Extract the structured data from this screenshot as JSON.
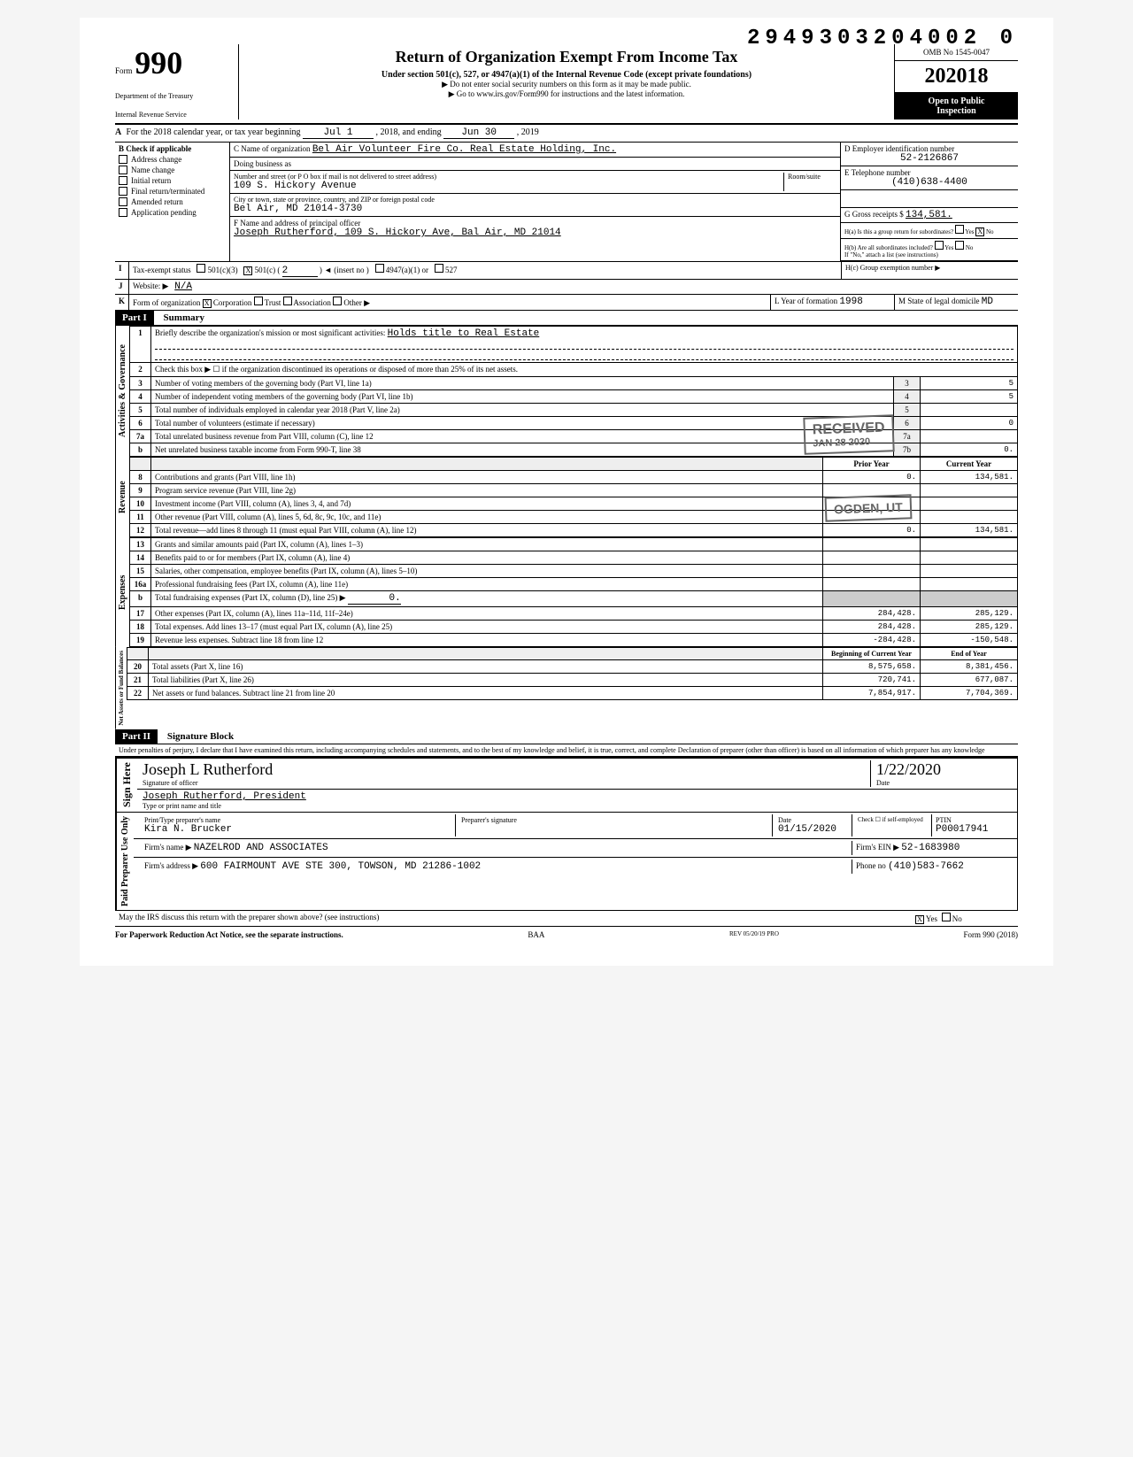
{
  "document_id": "2949303204002 0",
  "form": {
    "label": "Form",
    "number": "990",
    "title": "Return of Organization Exempt From Income Tax",
    "subtitle": "Under section 501(c), 527, or 4947(a)(1) of the Internal Revenue Code (except private foundations)",
    "instruction1": "▶ Do not enter social security numbers on this form as it may be made public.",
    "instruction2": "▶ Go to www.irs.gov/Form990 for instructions and the latest information.",
    "dept1": "Department of the Treasury",
    "dept2": "Internal Revenue Service",
    "omb": "OMB No 1545-0047",
    "year": "2018",
    "open_public1": "Open to Public",
    "open_public2": "Inspection"
  },
  "line_a": {
    "prefix": "For the 2018 calendar year, or tax year beginning",
    "begin": "Jul 1",
    "mid": ", 2018, and ending",
    "end": "Jun 30",
    "suffix": ", 2019"
  },
  "section_b": {
    "header": "Check if applicable",
    "items": [
      "Address change",
      "Name change",
      "Initial return",
      "Final return/terminated",
      "Amended return",
      "Application pending"
    ]
  },
  "section_c": {
    "name_label": "C Name of organization",
    "name": "Bel Air Volunteer Fire Co. Real Estate Holding, Inc.",
    "dba_label": "Doing business as",
    "dba": "",
    "addr_label": "Number and street (or P O box if mail is not delivered to street address)",
    "room_label": "Room/suite",
    "addr": "109 S. Hickory Avenue",
    "city_label": "City or town, state or province, country, and ZIP or foreign postal code",
    "city": "Bel Air, MD 21014-3730",
    "officer_label": "F Name and address of principal officer",
    "officer": "Joseph Rutherford, 109 S. Hickory Ave, Bal Air, MD 21014"
  },
  "section_d": {
    "ein_label": "D Employer identification number",
    "ein": "52-2126867",
    "tel_label": "E Telephone number",
    "tel": "(410)638-4400",
    "gross_label": "G Gross receipts $",
    "gross": "134,581."
  },
  "section_h": {
    "ha_label": "H(a) Is this a group return for subordinates?",
    "ha_yes": "Yes",
    "ha_no": "No",
    "hb_label": "H(b) Are all subordinates included?",
    "hb_yes": "Yes",
    "hb_no": "No",
    "hb_note": "If \"No,\" attach a list (see instructions)",
    "hc_label": "H(c) Group exemption number ▶"
  },
  "line_i": {
    "label": "Tax-exempt status",
    "opt1": "501(c)(3)",
    "opt2": "501(c) (",
    "opt2_val": "2",
    "opt2_suffix": ") ◄ (insert no )",
    "opt3": "4947(a)(1) or",
    "opt4": "527"
  },
  "line_j": {
    "label": "Website: ▶",
    "value": "N/A"
  },
  "line_k": {
    "label": "Form of organization",
    "opts": [
      "Corporation",
      "Trust",
      "Association",
      "Other ▶"
    ],
    "year_label": "L Year of formation",
    "year": "1998",
    "state_label": "M State of legal domicile",
    "state": "MD"
  },
  "part1": {
    "header": "Part I",
    "title": "Summary",
    "sections": {
      "governance": "Activities & Governance",
      "revenue": "Revenue",
      "expenses": "Expenses",
      "net": "Net Assets or Fund Balances"
    },
    "line1_label": "Briefly describe the organization's mission or most significant activities:",
    "line1_value": "Holds title to Real Estate",
    "line2": "Check this box ▶ ☐ if the organization discontinued its operations or disposed of more than 25% of its net assets.",
    "cols": {
      "prior": "Prior Year",
      "current": "Current Year",
      "begin": "Beginning of Current Year",
      "end": "End of Year"
    },
    "rows": [
      {
        "n": "3",
        "desc": "Number of voting members of the governing body (Part VI, line 1a)",
        "box": "3",
        "val": "5"
      },
      {
        "n": "4",
        "desc": "Number of independent voting members of the governing body (Part VI, line 1b)",
        "box": "4",
        "val": "5"
      },
      {
        "n": "5",
        "desc": "Total number of individuals employed in calendar year 2018 (Part V, line 2a)",
        "box": "5",
        "val": ""
      },
      {
        "n": "6",
        "desc": "Total number of volunteers (estimate if necessary)",
        "box": "6",
        "val": "0"
      },
      {
        "n": "7a",
        "desc": "Total unrelated business revenue from Part VIII, column (C), line 12",
        "box": "7a",
        "val": ""
      },
      {
        "n": "b",
        "desc": "Net unrelated business taxable income from Form 990-T, line 38",
        "box": "7b",
        "val": "0."
      }
    ],
    "revenue_rows": [
      {
        "n": "8",
        "desc": "Contributions and grants (Part VIII, line 1h)",
        "prior": "0.",
        "curr": "134,581."
      },
      {
        "n": "9",
        "desc": "Program service revenue (Part VIII, line 2g)",
        "prior": "",
        "curr": ""
      },
      {
        "n": "10",
        "desc": "Investment income (Part VIII, column (A), lines 3, 4, and 7d)",
        "prior": "",
        "curr": ""
      },
      {
        "n": "11",
        "desc": "Other revenue (Part VIII, column (A), lines 5, 6d, 8c, 9c, 10c, and 11e)",
        "prior": "",
        "curr": ""
      },
      {
        "n": "12",
        "desc": "Total revenue—add lines 8 through 11 (must equal Part VIII, column (A), line 12)",
        "prior": "0.",
        "curr": "134,581."
      }
    ],
    "expense_rows": [
      {
        "n": "13",
        "desc": "Grants and similar amounts paid (Part IX, column (A), lines 1–3)",
        "prior": "",
        "curr": ""
      },
      {
        "n": "14",
        "desc": "Benefits paid to or for members (Part IX, column (A), line 4)",
        "prior": "",
        "curr": ""
      },
      {
        "n": "15",
        "desc": "Salaries, other compensation, employee benefits (Part IX, column (A), lines 5–10)",
        "prior": "",
        "curr": ""
      },
      {
        "n": "16a",
        "desc": "Professional fundraising fees (Part IX, column (A), line 11e)",
        "prior": "",
        "curr": ""
      },
      {
        "n": "b",
        "desc": "Total fundraising expenses (Part IX, column (D), line 25) ▶",
        "inline": "0.",
        "prior": "",
        "curr": ""
      },
      {
        "n": "17",
        "desc": "Other expenses (Part IX, column (A), lines 11a–11d, 11f–24e)",
        "prior": "284,428.",
        "curr": "285,129."
      },
      {
        "n": "18",
        "desc": "Total expenses. Add lines 13–17 (must equal Part IX, column (A), line 25)",
        "prior": "284,428.",
        "curr": "285,129."
      },
      {
        "n": "19",
        "desc": "Revenue less expenses. Subtract line 18 from line 12",
        "prior": "-284,428.",
        "curr": "-150,548."
      }
    ],
    "net_rows": [
      {
        "n": "20",
        "desc": "Total assets (Part X, line 16)",
        "prior": "8,575,658.",
        "curr": "8,381,456."
      },
      {
        "n": "21",
        "desc": "Total liabilities (Part X, line 26)",
        "prior": "720,741.",
        "curr": "677,087."
      },
      {
        "n": "22",
        "desc": "Net assets or fund balances. Subtract line 21 from line 20",
        "prior": "7,854,917.",
        "curr": "7,704,369."
      }
    ]
  },
  "part2": {
    "header": "Part II",
    "title": "Signature Block",
    "penalty": "Under penalties of perjury, I declare that I have examined this return, including accompanying schedules and statements, and to the best of my knowledge and belief, it is true, correct, and complete Declaration of preparer (other than officer) is based on all information of which preparer has any knowledge",
    "sign_here": "Sign Here",
    "sig_label": "Signature of officer",
    "sig_handwritten": "Joseph L Rutherford",
    "date_label": "Date",
    "date": "1/22/2020",
    "name_label": "Type or print name and title",
    "name": "Joseph Rutherford, President",
    "paid_label": "Paid Preparer Use Only",
    "prep_name_label": "Print/Type preparer's name",
    "prep_name": "Kira N. Brucker",
    "prep_sig_label": "Preparer's signature",
    "prep_date_label": "Date",
    "prep_date": "01/15/2020",
    "check_label": "Check ☐ if self-employed",
    "ptin_label": "PTIN",
    "ptin": "P00017941",
    "firm_name_label": "Firm's name ▶",
    "firm_name": "NAZELROD AND ASSOCIATES",
    "firm_ein_label": "Firm's EIN ▶",
    "firm_ein": "52-1683980",
    "firm_addr_label": "Firm's address ▶",
    "firm_addr": "600 FAIRMOUNT AVE STE 300, TOWSON, MD 21286-1002",
    "firm_phone_label": "Phone no",
    "firm_phone": "(410)583-7662",
    "discuss": "May the IRS discuss this return with the preparer shown above? (see instructions)",
    "yes": "Yes",
    "no": "No"
  },
  "footer": {
    "left": "For Paperwork Reduction Act Notice, see the separate instructions.",
    "mid": "BAA",
    "rev": "REV 05/20/19 PRO",
    "right": "Form 990 (2018)"
  },
  "stamps": {
    "received": "RECEIVED",
    "received_date": "JAN 28 2020",
    "ogden": "OGDEN, UT"
  }
}
